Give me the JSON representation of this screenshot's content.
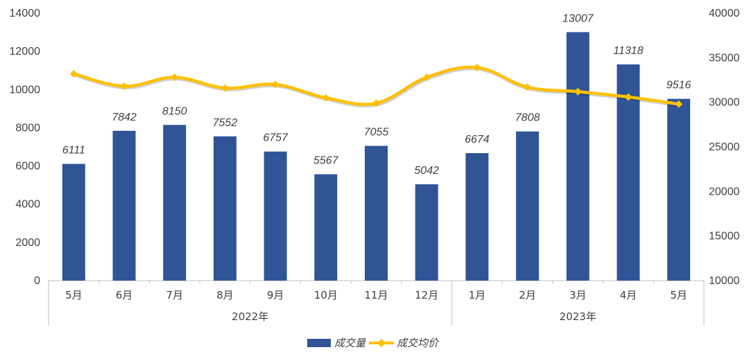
{
  "colors": {
    "bar": "#2F5597",
    "line": "#FFC000",
    "axis": "#BFBFBF",
    "text": "#404040"
  },
  "chart_data": {
    "type": "bar",
    "categories": [
      "5月",
      "6月",
      "7月",
      "8月",
      "9月",
      "10月",
      "11月",
      "12月",
      "1月",
      "2月",
      "3月",
      "4月",
      "5月"
    ],
    "groups": [
      {
        "label": "2022年",
        "count": 8
      },
      {
        "label": "2023年",
        "count": 5
      }
    ],
    "series": [
      {
        "name": "成交量",
        "type": "bar",
        "axis": "left",
        "values": [
          6111,
          7842,
          8150,
          7552,
          6757,
          5567,
          7055,
          5042,
          6674,
          7808,
          13007,
          11318,
          9516
        ]
      },
      {
        "name": "成交均价",
        "type": "line",
        "axis": "right",
        "smooth": true,
        "values": [
          33200,
          31800,
          32800,
          31600,
          32000,
          30500,
          29900,
          32800,
          33900,
          31700,
          31200,
          30600,
          29800
        ]
      }
    ],
    "y_left": {
      "min": 0,
      "max": 14000,
      "ticks": [
        "0",
        "2000",
        "4000",
        "6000",
        "8000",
        "10000",
        "12000",
        "14000"
      ]
    },
    "y_right": {
      "min": 10000,
      "max": 40000,
      "ticks": [
        "10000",
        "15000",
        "20000",
        "25000",
        "30000",
        "35000",
        "40000"
      ]
    },
    "data_labels": [
      "6111",
      "7842",
      "8150",
      "7552",
      "6757",
      "5567",
      "7055",
      "5042",
      "6674",
      "7808",
      "13007",
      "11318",
      "9516"
    ],
    "legend": [
      "成交量",
      "成交均价"
    ],
    "legend_position": "bottom",
    "grid": false
  }
}
